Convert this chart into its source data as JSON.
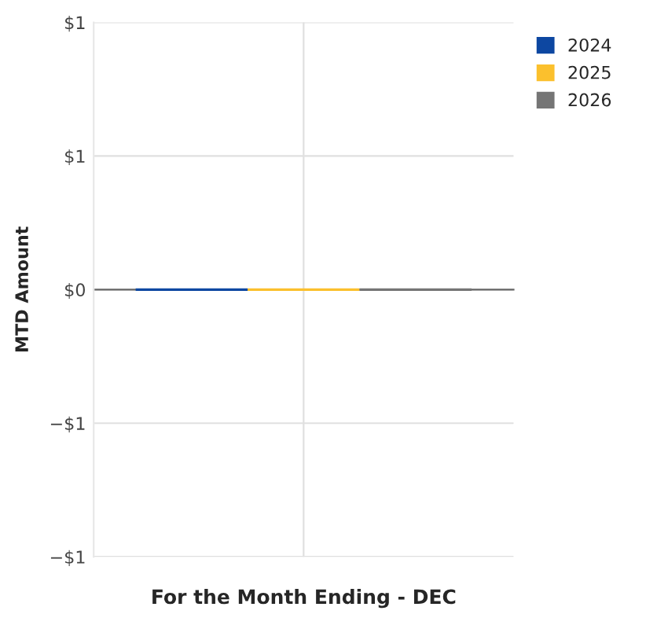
{
  "chart_data": {
    "type": "bar",
    "xlabel": "For the Month Ending - DEC",
    "ylabel": "MTD Amount",
    "categories": [
      null
    ],
    "series": [
      {
        "name": "2024",
        "color": "#0d47a1",
        "values": [
          0
        ]
      },
      {
        "name": "2025",
        "color": "#fbc02d",
        "values": [
          0
        ]
      },
      {
        "name": "2026",
        "color": "#757575",
        "values": [
          0
        ]
      }
    ],
    "ylim": [
      -1,
      1
    ],
    "yticks": [
      {
        "value": -1,
        "label": "−$1"
      },
      {
        "value": -0.5,
        "label": "−$1"
      },
      {
        "value": 0,
        "label": "$0"
      },
      {
        "value": 0.5,
        "label": "$1"
      },
      {
        "value": 1,
        "label": "$1"
      }
    ],
    "grid": true,
    "legend": "top right"
  }
}
